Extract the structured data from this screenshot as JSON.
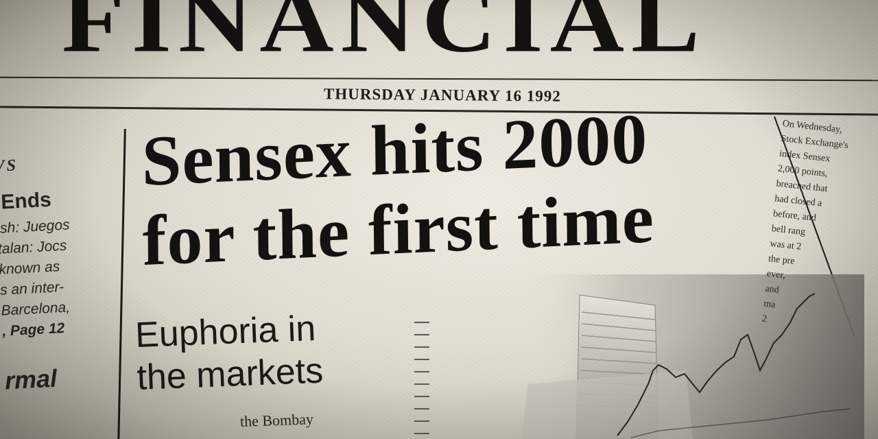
{
  "masthead": "FINANCIAL",
  "dateline": "THURSDAY JANUARY 16 1992",
  "left_column": {
    "section": "VS",
    "heading": "Ends",
    "lines": [
      "ish: Juegos",
      "talan: Jocs",
      "known as",
      "s an inter-",
      "Barcelona,"
    ],
    "page_ref": ", Page 12",
    "heading2": "rmal"
  },
  "headline": {
    "line1": "Sensex hits 2000",
    "line2": "for the first time"
  },
  "subhead": {
    "line1": "Euphoria in",
    "line2": "the markets"
  },
  "body_fragment": "the   Bombay",
  "right_column": {
    "lines": [
      "On Wednesday,",
      "Stock Exchange's",
      "index Sensex",
      "2,000 points,",
      "breached that",
      "had closed a",
      "before, and",
      "bell rang",
      "was at 2",
      "the pre",
      "ever,",
      "and",
      "ma",
      "2"
    ]
  },
  "graphic": {
    "description_icon": "stock-exchange-building-with-price-chart",
    "colors": {
      "ink": "#141210",
      "paper": "#ebe6dc",
      "photo": "#8f8a82"
    }
  }
}
